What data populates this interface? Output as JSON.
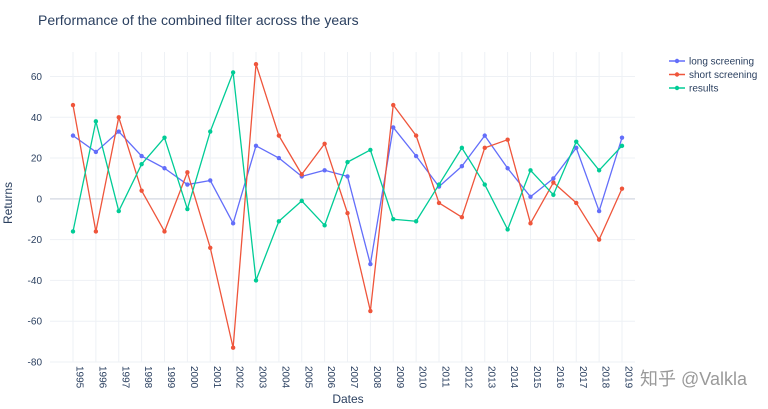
{
  "chart_data": {
    "type": "line",
    "title": "Performance of the combined filter across the years",
    "xlabel": "Dates",
    "ylabel": "Returns",
    "ylim": [
      -80,
      72
    ],
    "yticks": [
      -80,
      -60,
      -40,
      -20,
      0,
      20,
      40,
      60
    ],
    "grid": true,
    "legend": "top-right",
    "categories": [
      "1995",
      "1996",
      "1997",
      "1998",
      "1999",
      "2000",
      "2001",
      "2002",
      "2003",
      "2004",
      "2005",
      "2006",
      "2007",
      "2008",
      "2009",
      "2010",
      "2011",
      "2012",
      "2013",
      "2014",
      "2015",
      "2016",
      "2017",
      "2018",
      "2019"
    ],
    "series": [
      {
        "name": "long screening",
        "color": "#636efa",
        "values": [
          31,
          23,
          33,
          21,
          15,
          7,
          9,
          -12,
          26,
          20,
          11,
          14,
          11,
          -32,
          35,
          21,
          6,
          16,
          31,
          15,
          1,
          10,
          25,
          -6,
          30
        ]
      },
      {
        "name": "short screening",
        "color": "#ef553b",
        "values": [
          46,
          -16,
          40,
          4,
          -16,
          13,
          -24,
          -73,
          66,
          31,
          12,
          27,
          -7,
          -55,
          46,
          31,
          -2,
          -9,
          25,
          29,
          -12,
          8,
          -2,
          -20,
          5
        ]
      },
      {
        "name": "results",
        "color": "#00cc96",
        "values": [
          -16,
          38,
          -6,
          17,
          30,
          -5,
          33,
          62,
          -40,
          -11,
          -1,
          -13,
          18,
          24,
          -10,
          -11,
          7,
          25,
          7,
          -15,
          14,
          2,
          28,
          14,
          26
        ]
      }
    ]
  },
  "watermark": "知乎 @Valkla"
}
